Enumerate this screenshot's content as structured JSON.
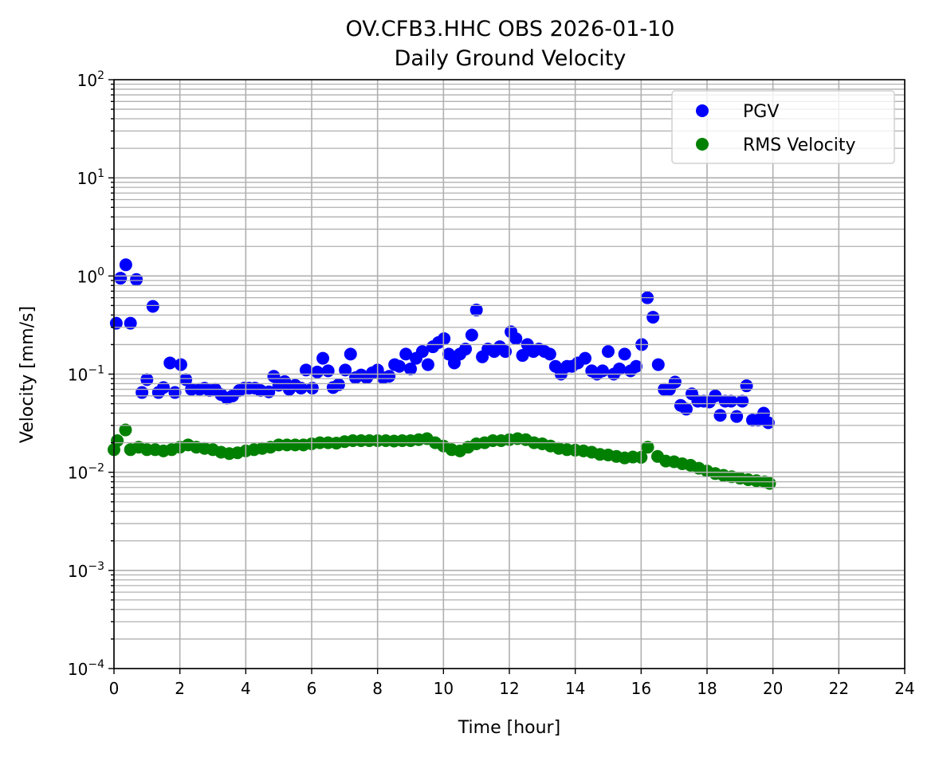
{
  "chart_data": {
    "type": "scatter",
    "title": [
      "OV.CFB3.HHC OBS 2026-01-10",
      "Daily Ground Velocity"
    ],
    "xlabel": "Time [hour]",
    "ylabel": "Velocity [mm/s]",
    "xlim": [
      0,
      24
    ],
    "ylim": [
      0.0001,
      100
    ],
    "yscale": "log",
    "x_ticks": [
      0,
      2,
      4,
      6,
      8,
      10,
      12,
      14,
      16,
      18,
      20,
      22,
      24
    ],
    "x_tick_labels": [
      "0",
      "2",
      "4",
      "6",
      "8",
      "10",
      "12",
      "14",
      "16",
      "18",
      "20",
      "22",
      "24"
    ],
    "y_tick_base": "10",
    "y_tick_exponents": [
      "−4",
      "−3",
      "−2",
      "−1",
      "0",
      "1",
      "2"
    ],
    "grid": "major and minor",
    "legend_placement": "top-right",
    "series": [
      {
        "name": "PGV",
        "color": "#0000ff",
        "points": [
          [
            0.07,
            0.33
          ],
          [
            0.2,
            0.95
          ],
          [
            0.36,
            1.3
          ],
          [
            0.5,
            0.33
          ],
          [
            0.68,
            0.92
          ],
          [
            0.85,
            0.065
          ],
          [
            1.0,
            0.088
          ],
          [
            1.18,
            0.49
          ],
          [
            1.35,
            0.065
          ],
          [
            1.5,
            0.073
          ],
          [
            1.7,
            0.13
          ],
          [
            1.85,
            0.065
          ],
          [
            2.03,
            0.125
          ],
          [
            2.18,
            0.088
          ],
          [
            2.35,
            0.07
          ],
          [
            2.6,
            0.07
          ],
          [
            2.75,
            0.072
          ],
          [
            2.9,
            0.068
          ],
          [
            3.07,
            0.07
          ],
          [
            3.25,
            0.062
          ],
          [
            3.43,
            0.057
          ],
          [
            3.6,
            0.06
          ],
          [
            3.8,
            0.068
          ],
          [
            3.95,
            0.072
          ],
          [
            4.1,
            0.072
          ],
          [
            4.28,
            0.072
          ],
          [
            4.45,
            0.068
          ],
          [
            4.7,
            0.066
          ],
          [
            4.85,
            0.095
          ],
          [
            5.0,
            0.077
          ],
          [
            5.18,
            0.084
          ],
          [
            5.32,
            0.07
          ],
          [
            5.5,
            0.077
          ],
          [
            5.68,
            0.072
          ],
          [
            5.83,
            0.11
          ],
          [
            6.02,
            0.072
          ],
          [
            6.17,
            0.105
          ],
          [
            6.34,
            0.145
          ],
          [
            6.5,
            0.108
          ],
          [
            6.65,
            0.073
          ],
          [
            6.82,
            0.078
          ],
          [
            7.02,
            0.11
          ],
          [
            7.18,
            0.16
          ],
          [
            7.33,
            0.092
          ],
          [
            7.5,
            0.098
          ],
          [
            7.67,
            0.092
          ],
          [
            7.84,
            0.103
          ],
          [
            8.0,
            0.11
          ],
          [
            8.17,
            0.092
          ],
          [
            8.35,
            0.095
          ],
          [
            8.52,
            0.125
          ],
          [
            8.66,
            0.12
          ],
          [
            8.86,
            0.16
          ],
          [
            9.0,
            0.113
          ],
          [
            9.17,
            0.145
          ],
          [
            9.36,
            0.17
          ],
          [
            9.53,
            0.125
          ],
          [
            9.68,
            0.19
          ],
          [
            9.85,
            0.21
          ],
          [
            10.02,
            0.23
          ],
          [
            10.16,
            0.16
          ],
          [
            10.33,
            0.13
          ],
          [
            10.5,
            0.16
          ],
          [
            10.67,
            0.18
          ],
          [
            10.86,
            0.25
          ],
          [
            11.0,
            0.45
          ],
          [
            11.18,
            0.15
          ],
          [
            11.35,
            0.18
          ],
          [
            11.54,
            0.17
          ],
          [
            11.71,
            0.19
          ],
          [
            11.88,
            0.17
          ],
          [
            12.05,
            0.27
          ],
          [
            12.2,
            0.23
          ],
          [
            12.4,
            0.155
          ],
          [
            12.55,
            0.2
          ],
          [
            12.73,
            0.17
          ],
          [
            12.9,
            0.18
          ],
          [
            13.07,
            0.17
          ],
          [
            13.23,
            0.16
          ],
          [
            13.4,
            0.12
          ],
          [
            13.57,
            0.1
          ],
          [
            13.75,
            0.12
          ],
          [
            13.9,
            0.12
          ],
          [
            14.08,
            0.13
          ],
          [
            14.3,
            0.145
          ],
          [
            14.5,
            0.108
          ],
          [
            14.66,
            0.1
          ],
          [
            14.83,
            0.108
          ],
          [
            15.0,
            0.17
          ],
          [
            15.17,
            0.1
          ],
          [
            15.34,
            0.113
          ],
          [
            15.5,
            0.16
          ],
          [
            15.68,
            0.108
          ],
          [
            15.85,
            0.12
          ],
          [
            16.02,
            0.2
          ],
          [
            16.19,
            0.6
          ],
          [
            16.36,
            0.38
          ],
          [
            16.52,
            0.125
          ],
          [
            16.7,
            0.07
          ],
          [
            16.86,
            0.07
          ],
          [
            17.03,
            0.083
          ],
          [
            17.2,
            0.048
          ],
          [
            17.37,
            0.044
          ],
          [
            17.54,
            0.063
          ],
          [
            17.72,
            0.053
          ],
          [
            17.9,
            0.053
          ],
          [
            18.07,
            0.052
          ],
          [
            18.25,
            0.06
          ],
          [
            18.4,
            0.038
          ],
          [
            18.55,
            0.053
          ],
          [
            18.73,
            0.053
          ],
          [
            18.9,
            0.037
          ],
          [
            19.07,
            0.053
          ],
          [
            19.2,
            0.076
          ],
          [
            19.38,
            0.034
          ],
          [
            19.55,
            0.034
          ],
          [
            19.72,
            0.04
          ],
          [
            19.86,
            0.032
          ]
        ]
      },
      {
        "name": "RMS Velocity",
        "color": "#008000",
        "points": [
          [
            0.0,
            0.017
          ],
          [
            0.1,
            0.021
          ],
          [
            0.35,
            0.027
          ],
          [
            0.5,
            0.017
          ],
          [
            0.75,
            0.018
          ],
          [
            1.0,
            0.017
          ],
          [
            1.25,
            0.017
          ],
          [
            1.5,
            0.0165
          ],
          [
            1.75,
            0.017
          ],
          [
            2.0,
            0.018
          ],
          [
            2.25,
            0.019
          ],
          [
            2.5,
            0.018
          ],
          [
            2.75,
            0.0175
          ],
          [
            3.0,
            0.017
          ],
          [
            3.25,
            0.016
          ],
          [
            3.5,
            0.0155
          ],
          [
            3.75,
            0.0158
          ],
          [
            4.0,
            0.0165
          ],
          [
            4.25,
            0.017
          ],
          [
            4.5,
            0.0175
          ],
          [
            4.75,
            0.018
          ],
          [
            5.0,
            0.019
          ],
          [
            5.25,
            0.019
          ],
          [
            5.5,
            0.019
          ],
          [
            5.75,
            0.019
          ],
          [
            6.0,
            0.0195
          ],
          [
            6.25,
            0.02
          ],
          [
            6.5,
            0.02
          ],
          [
            6.75,
            0.0198
          ],
          [
            7.0,
            0.0205
          ],
          [
            7.25,
            0.021
          ],
          [
            7.5,
            0.021
          ],
          [
            7.75,
            0.021
          ],
          [
            8.0,
            0.021
          ],
          [
            8.25,
            0.021
          ],
          [
            8.5,
            0.0208
          ],
          [
            8.75,
            0.021
          ],
          [
            9.0,
            0.021
          ],
          [
            9.25,
            0.0215
          ],
          [
            9.5,
            0.022
          ],
          [
            9.75,
            0.02
          ],
          [
            10.0,
            0.0185
          ],
          [
            10.25,
            0.017
          ],
          [
            10.5,
            0.0165
          ],
          [
            10.75,
            0.018
          ],
          [
            11.0,
            0.0195
          ],
          [
            11.25,
            0.02
          ],
          [
            11.5,
            0.021
          ],
          [
            11.75,
            0.021
          ],
          [
            12.0,
            0.0215
          ],
          [
            12.25,
            0.022
          ],
          [
            12.5,
            0.0215
          ],
          [
            12.75,
            0.02
          ],
          [
            13.0,
            0.0195
          ],
          [
            13.25,
            0.0185
          ],
          [
            13.5,
            0.0175
          ],
          [
            13.75,
            0.017
          ],
          [
            14.0,
            0.0168
          ],
          [
            14.25,
            0.0165
          ],
          [
            14.5,
            0.016
          ],
          [
            14.75,
            0.0152
          ],
          [
            15.0,
            0.015
          ],
          [
            15.25,
            0.0145
          ],
          [
            15.5,
            0.014
          ],
          [
            15.75,
            0.0143
          ],
          [
            16.0,
            0.0142
          ],
          [
            16.2,
            0.018
          ],
          [
            16.5,
            0.0145
          ],
          [
            16.75,
            0.013
          ],
          [
            17.0,
            0.0128
          ],
          [
            17.25,
            0.0122
          ],
          [
            17.5,
            0.0118
          ],
          [
            17.75,
            0.011
          ],
          [
            18.0,
            0.0103
          ],
          [
            18.25,
            0.0097
          ],
          [
            18.5,
            0.0093
          ],
          [
            18.75,
            0.009
          ],
          [
            19.0,
            0.0087
          ],
          [
            19.25,
            0.0084
          ],
          [
            19.5,
            0.0082
          ],
          [
            19.75,
            0.008
          ],
          [
            19.9,
            0.0077
          ]
        ]
      }
    ]
  }
}
